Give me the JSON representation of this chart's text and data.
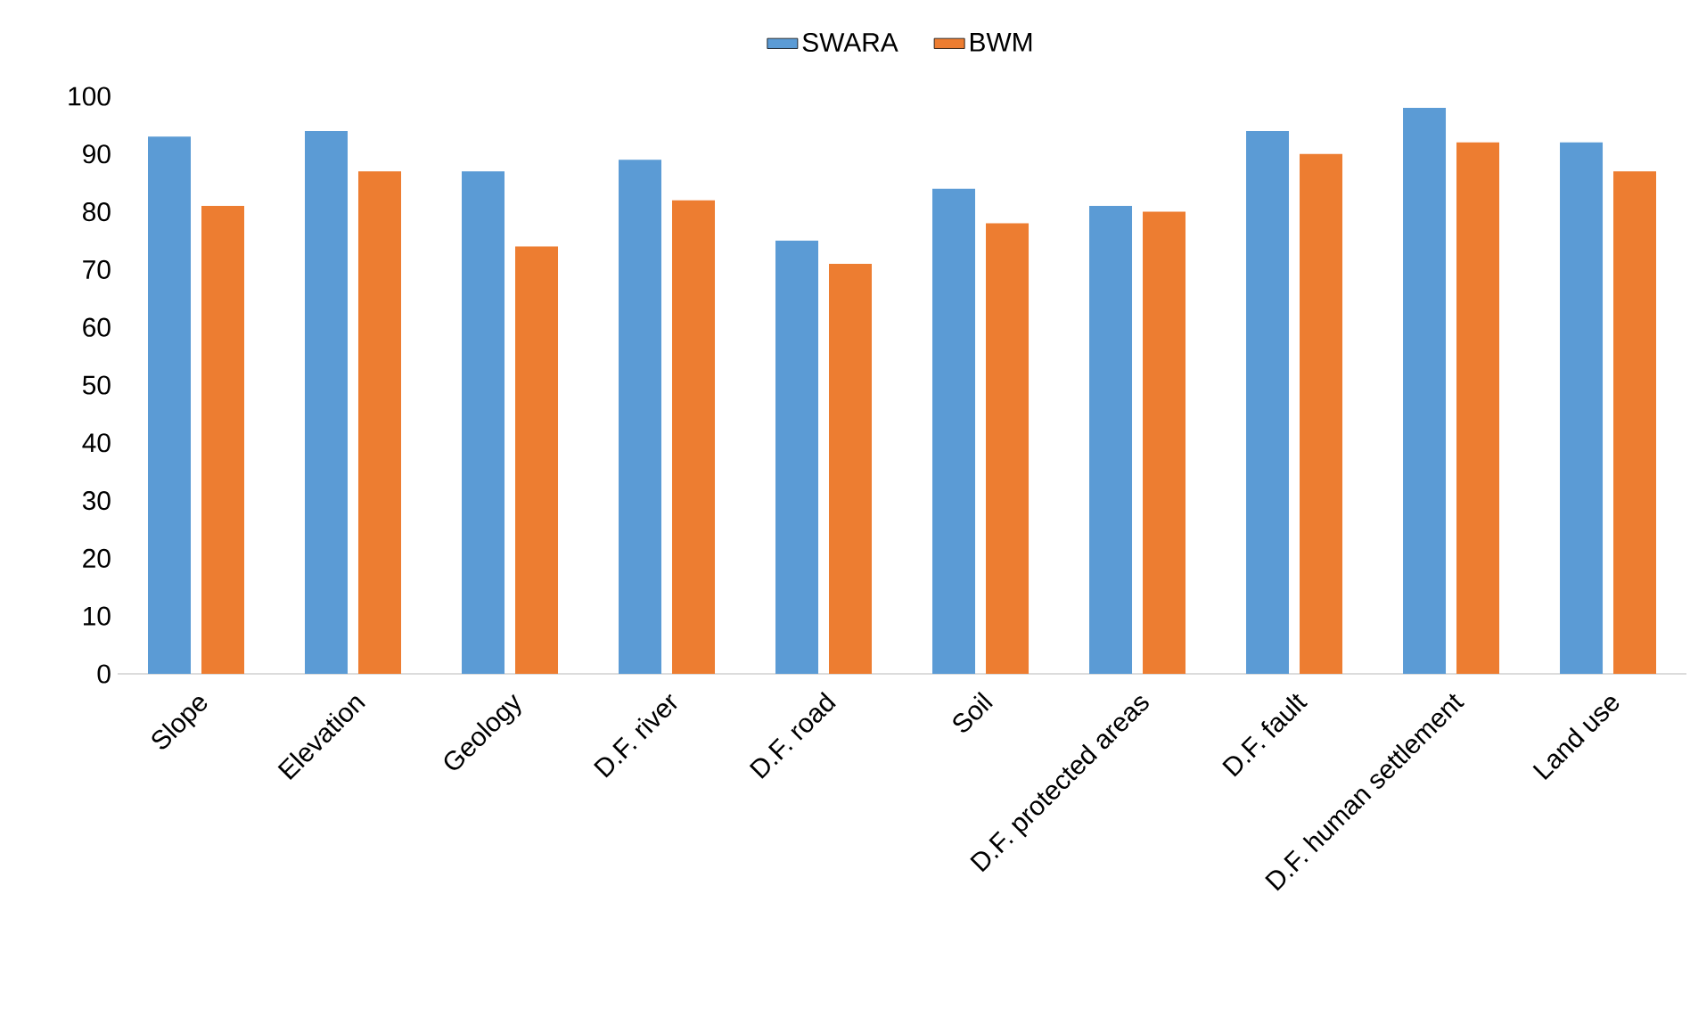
{
  "chart_data": {
    "type": "bar",
    "categories": [
      "Slope",
      "Elevation",
      "Geology",
      "D.F. river",
      "D.F. road",
      "Soil",
      "D.F. protected areas",
      "D.F. fault",
      "D.F. human settlement",
      "Land use"
    ],
    "series": [
      {
        "name": "SWARA",
        "color": "#5b9bd5",
        "values": [
          93,
          94,
          87,
          89,
          75,
          84,
          81,
          94,
          98,
          92
        ]
      },
      {
        "name": "BWM",
        "color": "#ed7d31",
        "values": [
          81,
          87,
          74,
          82,
          71,
          78,
          80,
          90,
          92,
          87
        ]
      }
    ],
    "ylim": [
      0,
      100
    ],
    "yticks": [
      0,
      10,
      20,
      30,
      40,
      50,
      60,
      70,
      80,
      90,
      100
    ],
    "legend": "top"
  }
}
